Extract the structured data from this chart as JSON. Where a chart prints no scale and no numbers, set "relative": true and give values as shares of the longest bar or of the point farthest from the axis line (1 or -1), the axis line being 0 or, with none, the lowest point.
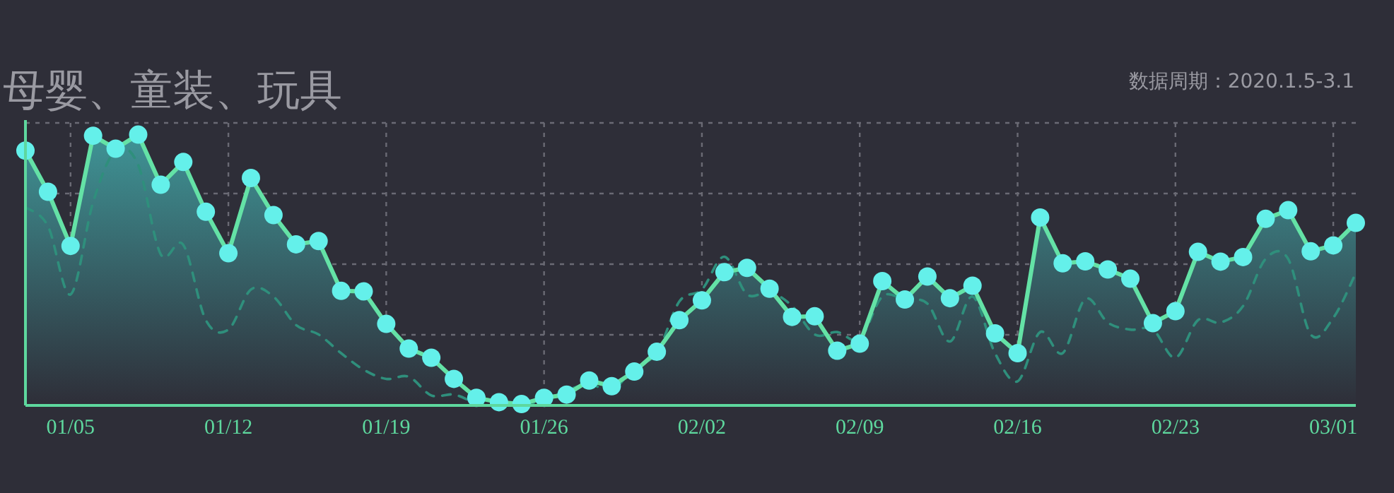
{
  "chart_data": {
    "type": "area",
    "title": "母婴、童装、玩具",
    "annotations": [
      "数据周期：2020.1.5-3.1"
    ],
    "relative": true,
    "grid": true,
    "x": [
      "2020-01-03",
      "2020-01-04",
      "2020-01-05",
      "2020-01-06",
      "2020-01-07",
      "2020-01-08",
      "2020-01-09",
      "2020-01-10",
      "2020-01-11",
      "2020-01-12",
      "2020-01-13",
      "2020-01-14",
      "2020-01-15",
      "2020-01-16",
      "2020-01-17",
      "2020-01-18",
      "2020-01-19",
      "2020-01-20",
      "2020-01-21",
      "2020-01-22",
      "2020-01-23",
      "2020-01-24",
      "2020-01-25",
      "2020-01-26",
      "2020-01-27",
      "2020-01-28",
      "2020-01-29",
      "2020-01-30",
      "2020-01-31",
      "2020-02-01",
      "2020-02-02",
      "2020-02-03",
      "2020-02-04",
      "2020-02-05",
      "2020-02-06",
      "2020-02-07",
      "2020-02-08",
      "2020-02-09",
      "2020-02-10",
      "2020-02-11",
      "2020-02-12",
      "2020-02-13",
      "2020-02-14",
      "2020-02-15",
      "2020-02-16",
      "2020-02-17",
      "2020-02-18",
      "2020-02-19",
      "2020-02-20",
      "2020-02-21",
      "2020-02-22",
      "2020-02-23",
      "2020-02-24",
      "2020-02-25",
      "2020-02-26",
      "2020-02-27",
      "2020-02-28",
      "2020-02-29",
      "2020-03-01",
      "2020-03-02"
    ],
    "xlim": [
      "2020-01-03",
      "2020-03-02"
    ],
    "xticks": [
      {
        "value": "2020-01-05",
        "label": "01/05"
      },
      {
        "value": "2020-01-12",
        "label": "01/12"
      },
      {
        "value": "2020-01-19",
        "label": "01/19"
      },
      {
        "value": "2020-01-26",
        "label": "01/26"
      },
      {
        "value": "2020-02-02",
        "label": "02/02"
      },
      {
        "value": "2020-02-09",
        "label": "02/09"
      },
      {
        "value": "2020-02-16",
        "label": "02/16"
      },
      {
        "value": "2020-02-23",
        "label": "02/23"
      },
      {
        "value": "2020-03-01",
        "label": "03/01"
      }
    ],
    "series": [
      {
        "type": "area",
        "color": "#64e2a6",
        "marker": "circle",
        "line_style": "solid",
        "values": [
          0.941,
          0.789,
          0.589,
          0.996,
          0.948,
          1,
          0.815,
          0.899,
          0.715,
          0.562,
          0.84,
          0.703,
          0.595,
          0.607,
          0.423,
          0.421,
          0.301,
          0.21,
          0.176,
          0.098,
          0.028,
          0.012,
          0.005,
          0.028,
          0.04,
          0.092,
          0.071,
          0.125,
          0.198,
          0.315,
          0.388,
          0.492,
          0.508,
          0.431,
          0.327,
          0.329,
          0.202,
          0.228,
          0.459,
          0.391,
          0.476,
          0.396,
          0.442,
          0.266,
          0.193,
          0.694,
          0.525,
          0.532,
          0.502,
          0.468,
          0.304,
          0.348,
          0.567,
          0.531,
          0.548,
          0.689,
          0.721,
          0.569,
          0.591,
          0.674
        ]
      },
      {
        "type": "line",
        "color": "#2f8f7c",
        "marker": "none",
        "line_style": "dashed",
        "values": [
          0.732,
          0.662,
          0.41,
          0.75,
          0.941,
          0.888,
          0.558,
          0.593,
          0.315,
          0.28,
          0.428,
          0.402,
          0.297,
          0.262,
          0.193,
          0.132,
          0.098,
          0.106,
          0.037,
          0.04,
          0.01,
          0.005,
          0.002,
          0.02,
          0.054,
          0.08,
          0.054,
          0.141,
          0.193,
          0.384,
          0.428,
          0.549,
          0.41,
          0.419,
          0.367,
          0.262,
          0.271,
          0.245,
          0.402,
          0.39,
          0.376,
          0.236,
          0.402,
          0.193,
          0.089,
          0.271,
          0.193,
          0.393,
          0.306,
          0.28,
          0.28,
          0.176,
          0.315,
          0.306,
          0.367,
          0.541,
          0.541,
          0.262,
          0.323,
          0.489
        ]
      }
    ]
  }
}
